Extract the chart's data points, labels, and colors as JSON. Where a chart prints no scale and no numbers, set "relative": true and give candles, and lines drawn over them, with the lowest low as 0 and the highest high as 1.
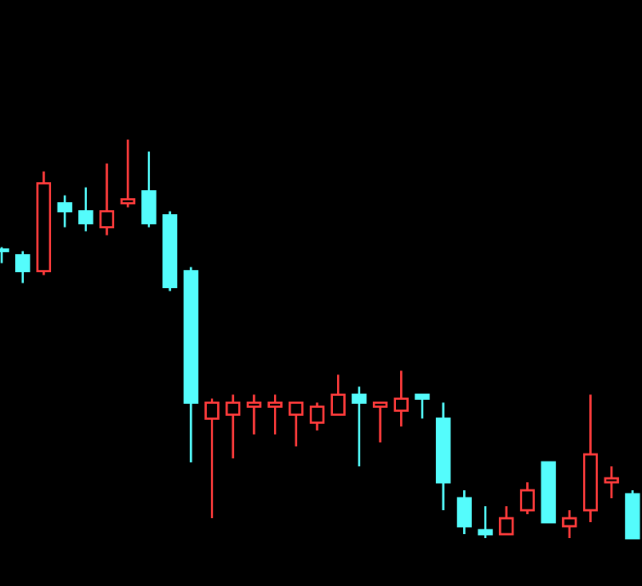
{
  "chart_data": {
    "type": "candlestick",
    "relative": true,
    "categories": [
      null,
      null,
      null,
      null,
      null,
      null,
      null,
      null,
      null,
      null,
      null,
      null,
      null,
      null,
      null,
      null,
      null,
      null,
      null,
      null,
      null,
      null,
      null,
      null,
      null,
      null,
      null,
      null,
      null,
      null,
      null
    ],
    "ohlc": [
      [
        0.72,
        0.73,
        0.69,
        0.72
      ],
      [
        0.71,
        0.72,
        0.64,
        0.67
      ],
      [
        0.67,
        0.92,
        0.66,
        0.89
      ],
      [
        0.84,
        0.86,
        0.78,
        0.82
      ],
      [
        0.82,
        0.88,
        0.77,
        0.79
      ],
      [
        0.78,
        0.94,
        0.76,
        0.82
      ],
      [
        0.84,
        1,
        0.83,
        0.85
      ],
      [
        0.87,
        0.97,
        0.78,
        0.79
      ],
      [
        0.81,
        0.82,
        0.62,
        0.63
      ],
      [
        0.67,
        0.68,
        0.19,
        0.34
      ],
      [
        0.3,
        0.35,
        0.05,
        0.34
      ],
      [
        0.31,
        0.36,
        0.2,
        0.34
      ],
      [
        0.33,
        0.36,
        0.26,
        0.34
      ],
      [
        0.33,
        0.36,
        0.26,
        0.34
      ],
      [
        0.31,
        0.34,
        0.23,
        0.34
      ],
      [
        0.29,
        0.34,
        0.27,
        0.33
      ],
      [
        0.31,
        0.41,
        0.31,
        0.36
      ],
      [
        0.36,
        0.38,
        0.18,
        0.34
      ],
      [
        0.33,
        0.34,
        0.24,
        0.34
      ],
      [
        0.32,
        0.42,
        0.28,
        0.35
      ],
      [
        0.36,
        0.36,
        0.3,
        0.35
      ],
      [
        0.3,
        0.34,
        0.07,
        0.14
      ],
      [
        0.1,
        0.12,
        0.01,
        0.03
      ],
      [
        0.02,
        0.08,
        0,
        0.01
      ],
      [
        0.01,
        0.08,
        0.01,
        0.05
      ],
      [
        0.07,
        0.14,
        0.06,
        0.12
      ],
      [
        0.19,
        0.19,
        0.04,
        0.04
      ],
      [
        0.03,
        0.07,
        0,
        0.05
      ],
      [
        0.07,
        0.36,
        0.04,
        0.21
      ],
      [
        0.14,
        0.18,
        0.1,
        0.15
      ],
      [
        0.11,
        0.12,
        0,
        0
      ]
    ],
    "colors": [
      "#54fcfc",
      "#54fcfc",
      "#ff3c3c",
      "#54fcfc",
      "#54fcfc",
      "#ff3c3c",
      "#ff3c3c",
      "#54fcfc",
      "#54fcfc",
      "#54fcfc",
      "#ff3c3c",
      "#ff3c3c",
      "#ff3c3c",
      "#ff3c3c",
      "#ff3c3c",
      "#ff3c3c",
      "#ff3c3c",
      "#54fcfc",
      "#ff3c3c",
      "#ff3c3c",
      "#54fcfc",
      "#54fcfc",
      "#54fcfc",
      "#54fcfc",
      "#ff3c3c",
      "#ff3c3c",
      "#54fcfc",
      "#ff3c3c",
      "#ff3c3c",
      "#ff3c3c",
      "#54fcfc"
    ]
  }
}
